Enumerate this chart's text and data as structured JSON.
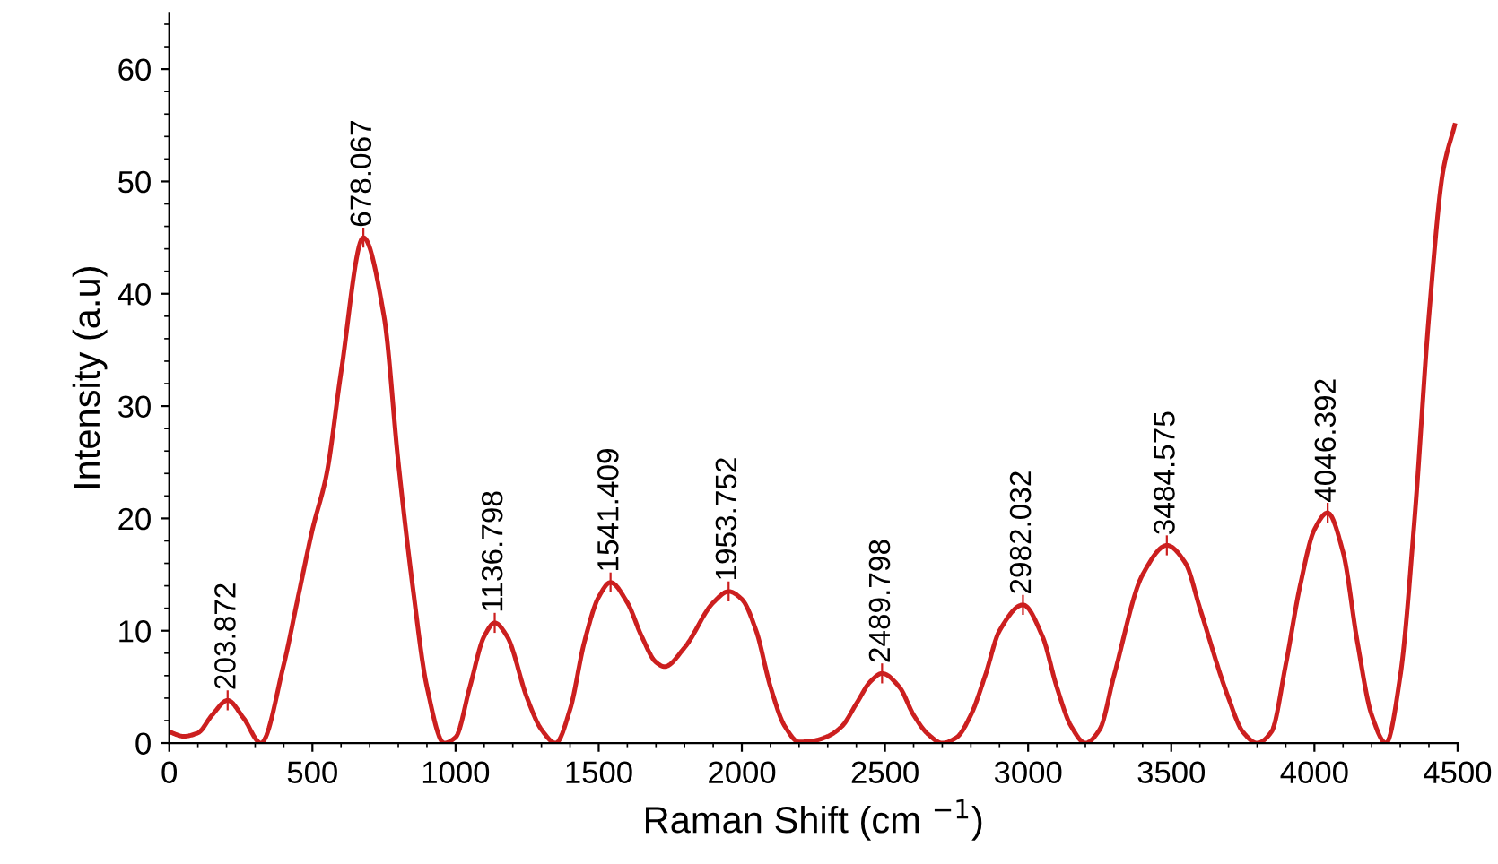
{
  "chart_data": {
    "type": "line",
    "xlabel": "Raman Shift (cm $^{−1}$)",
    "ylabel": "Intensity (a.u)",
    "xlim": [
      0,
      4500
    ],
    "xticks": [
      0,
      500,
      1000,
      1500,
      2000,
      2500,
      3000,
      3500,
      4000,
      4500
    ],
    "ylim": [
      0,
      65
    ],
    "yticks": [
      0,
      10,
      20,
      30,
      40,
      50,
      60
    ],
    "grid": false,
    "marker": "none",
    "line_style": "solid",
    "series": [
      {
        "color": "#cc1f1f",
        "x": [
          0,
          50,
          100,
          150,
          204,
          260,
          320,
          400,
          450,
          500,
          550,
          600,
          678,
          750,
          800,
          850,
          900,
          960,
          1000,
          1050,
          1100,
          1137,
          1180,
          1250,
          1300,
          1350,
          1400,
          1450,
          1500,
          1541,
          1600,
          1650,
          1700,
          1730,
          1800,
          1900,
          1954,
          2000,
          2050,
          2100,
          2150,
          2200,
          2250,
          2300,
          2350,
          2400,
          2450,
          2490,
          2550,
          2600,
          2650,
          2700,
          2750,
          2800,
          2850,
          2900,
          2982,
          3050,
          3100,
          3150,
          3200,
          3250,
          3300,
          3400,
          3485,
          3550,
          3600,
          3700,
          3750,
          3800,
          3850,
          3900,
          3950,
          4000,
          4046,
          4100,
          4150,
          4200,
          4250,
          4300,
          4350,
          4400,
          4450,
          4490
        ],
        "values": [
          1.0,
          0.6,
          0.9,
          2.5,
          3.8,
          2.2,
          0,
          7,
          13,
          19,
          24,
          33,
          45,
          38,
          25,
          14,
          5,
          0,
          0.5,
          5,
          9.5,
          10.7,
          9.5,
          4,
          1.2,
          0,
          3,
          9,
          13,
          14.3,
          12.5,
          9.5,
          7.2,
          6.8,
          8.5,
          12.5,
          13.5,
          12.8,
          10,
          5,
          1.5,
          0.1,
          0.2,
          0.6,
          1.5,
          3.5,
          5.5,
          6.2,
          5,
          2.5,
          0.8,
          0,
          0.5,
          2.5,
          6,
          10,
          12.3,
          9.5,
          5,
          1.5,
          0,
          1.2,
          6,
          15,
          17.6,
          16,
          12,
          4,
          1,
          0,
          1,
          7,
          14,
          19,
          20.5,
          17,
          9,
          2.5,
          0,
          6,
          20,
          38,
          51,
          55
        ]
      }
    ],
    "annotations": [
      {
        "text": "203.872",
        "x": 203.872,
        "y": 3.8
      },
      {
        "text": "678.067",
        "x": 678.067,
        "y": 45
      },
      {
        "text": "1136.798",
        "x": 1136.798,
        "y": 10.7
      },
      {
        "text": "1541.409",
        "x": 1541.409,
        "y": 14.3
      },
      {
        "text": "1953.752",
        "x": 1953.752,
        "y": 13.5
      },
      {
        "text": "2489.798",
        "x": 2489.798,
        "y": 6.2
      },
      {
        "text": "2982.032",
        "x": 2982.032,
        "y": 12.3
      },
      {
        "text": "3484.575",
        "x": 3484.575,
        "y": 17.6
      },
      {
        "text": "4046.392",
        "x": 4046.392,
        "y": 20.5
      }
    ]
  }
}
